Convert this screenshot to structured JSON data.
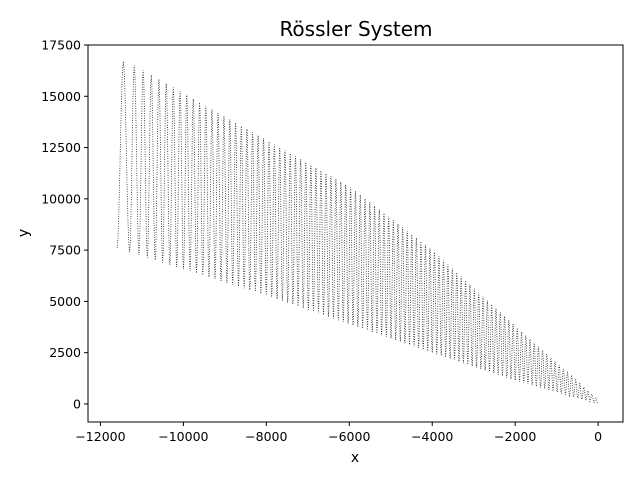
{
  "chart_data": {
    "type": "line",
    "title": "Rössler System",
    "xlabel": "x",
    "ylabel": "y",
    "xlim": [
      -12300,
      600
    ],
    "ylim": [
      -880,
      17500
    ],
    "xticks": [
      -12000,
      -10000,
      -8000,
      -6000,
      -4000,
      -2000,
      0
    ],
    "xtick_labels": [
      "−12000",
      "−10000",
      "−8000",
      "−6000",
      "−4000",
      "−2000",
      "0"
    ],
    "yticks": [
      0,
      2500,
      5000,
      7500,
      10000,
      12500,
      15000,
      17500
    ],
    "ytick_labels": [
      "0",
      "2500",
      "5000",
      "7500",
      "10000",
      "12500",
      "15000",
      "17500"
    ],
    "grid": false,
    "series": [
      {
        "style": "dotted",
        "color": "#000000",
        "trajectory": {
          "x_start": -11600,
          "x_end": 0,
          "num_oscillations": 95,
          "lower_envelope": [
            [
              -11600,
              7600
            ],
            [
              -8000,
              5300
            ],
            [
              -4000,
              2500
            ],
            [
              -2000,
              1150
            ],
            [
              0,
              0
            ]
          ],
          "upper_envelope": [
            [
              -11350,
              16700
            ],
            [
              -9000,
              14000
            ],
            [
              -6000,
              10600
            ],
            [
              -4000,
              7500
            ],
            [
              -2000,
              3800
            ],
            [
              0,
              200
            ]
          ]
        }
      }
    ]
  }
}
